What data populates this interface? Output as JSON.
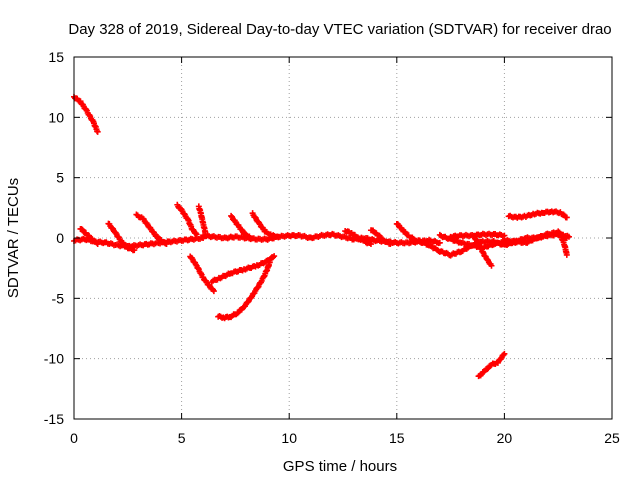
{
  "chart_data": {
    "type": "scatter",
    "title": "Day 328 of 2019, Sidereal Day-to-day VTEC variation (SDTVAR) for receiver drao",
    "xlabel": "GPS time / hours",
    "ylabel": "SDTVAR / TECUs",
    "xlim": [
      0,
      25
    ],
    "ylim": [
      -15,
      15
    ],
    "xticks": [
      0,
      5,
      10,
      15,
      20,
      25
    ],
    "yticks": [
      -15,
      -10,
      -5,
      0,
      5,
      10,
      15
    ],
    "grid": true,
    "marker": "plus",
    "color": "#ff0000",
    "traces": [
      {
        "x": [
          0.0,
          0.3,
          0.6,
          0.9,
          1.1
        ],
        "y": [
          11.7,
          11.3,
          10.5,
          9.6,
          8.8
        ]
      },
      {
        "x": [
          0.0,
          0.5,
          1.0,
          1.5,
          2.0,
          2.5,
          3.0,
          3.5,
          4.0,
          4.5,
          5.0,
          5.5,
          6.0
        ],
        "y": [
          -0.2,
          -0.1,
          -0.3,
          -0.4,
          -0.6,
          -0.7,
          -0.6,
          -0.5,
          -0.4,
          -0.3,
          -0.2,
          -0.1,
          0.0
        ]
      },
      {
        "x": [
          0.3,
          0.6,
          0.9,
          1.1
        ],
        "y": [
          0.8,
          0.3,
          -0.2,
          -0.5
        ]
      },
      {
        "x": [
          1.6,
          1.9,
          2.2,
          2.5,
          2.8
        ],
        "y": [
          1.2,
          0.5,
          -0.3,
          -0.8,
          -1.0
        ]
      },
      {
        "x": [
          2.9,
          3.2,
          3.5,
          3.8,
          4.1,
          4.3
        ],
        "y": [
          1.9,
          1.6,
          0.9,
          0.2,
          -0.3,
          -0.5
        ]
      },
      {
        "x": [
          4.8,
          5.0,
          5.3,
          5.5,
          5.7
        ],
        "y": [
          2.7,
          2.3,
          1.5,
          0.7,
          0.3
        ]
      },
      {
        "x": [
          5.8,
          5.9,
          6.0,
          6.1
        ],
        "y": [
          2.6,
          2.0,
          1.2,
          0.5
        ]
      },
      {
        "x": [
          5.4,
          5.7,
          6.0,
          6.3,
          6.5
        ],
        "y": [
          -1.5,
          -2.3,
          -3.3,
          -4.0,
          -4.4
        ]
      },
      {
        "x": [
          6.4,
          6.8,
          7.3,
          7.9,
          8.5,
          9.0,
          9.3
        ],
        "y": [
          -3.6,
          -3.3,
          -2.9,
          -2.6,
          -2.3,
          -1.9,
          -1.5
        ]
      },
      {
        "x": [
          6.7,
          7.0,
          7.3,
          7.6,
          7.9,
          8.2,
          8.5,
          8.8,
          9.0,
          9.1
        ],
        "y": [
          -6.5,
          -6.6,
          -6.5,
          -6.2,
          -5.7,
          -5.0,
          -4.2,
          -3.3,
          -2.5,
          -2.0
        ]
      },
      {
        "x": [
          7.3,
          7.6,
          7.9,
          8.2
        ],
        "y": [
          1.8,
          1.1,
          0.4,
          0.0
        ]
      },
      {
        "x": [
          8.3,
          8.6,
          8.9,
          9.2,
          9.5
        ],
        "y": [
          2.0,
          1.2,
          0.5,
          0.2,
          0.1
        ]
      },
      {
        "x": [
          6.0,
          6.5,
          7.0,
          7.5,
          8.0,
          8.5,
          9.0,
          9.5,
          10.0,
          10.5,
          11.0,
          11.5,
          12.0,
          12.5,
          13.0,
          13.5,
          14.0,
          14.5,
          15.0,
          15.5,
          16.0,
          16.5,
          17.0
        ],
        "y": [
          0.2,
          0.1,
          0.0,
          0.1,
          0.0,
          -0.1,
          -0.1,
          0.1,
          0.2,
          0.2,
          0.0,
          0.2,
          0.3,
          0.1,
          -0.1,
          0.0,
          -0.2,
          -0.3,
          -0.4,
          -0.4,
          -0.3,
          -0.2,
          -0.4
        ]
      },
      {
        "x": [
          12.6,
          12.9,
          13.2,
          13.5,
          13.8
        ],
        "y": [
          0.6,
          0.4,
          0.0,
          -0.3,
          -0.5
        ]
      },
      {
        "x": [
          13.8,
          14.1,
          14.4,
          14.7
        ],
        "y": [
          0.7,
          0.3,
          -0.2,
          -0.5
        ]
      },
      {
        "x": [
          15.0,
          15.3,
          15.6,
          15.9,
          16.2
        ],
        "y": [
          1.2,
          0.6,
          0.1,
          -0.2,
          -0.4
        ]
      },
      {
        "x": [
          16.0,
          16.5,
          17.0,
          17.5,
          18.0,
          18.5,
          19.0,
          19.5,
          20.0,
          20.5,
          21.0,
          21.5,
          22.0,
          22.5,
          23.0
        ],
        "y": [
          -0.2,
          -0.6,
          -1.1,
          -1.4,
          -1.1,
          -0.6,
          -0.3,
          -0.3,
          -0.6,
          -0.3,
          0.0,
          0.0,
          0.2,
          0.3,
          0.1
        ]
      },
      {
        "x": [
          17.0,
          17.5,
          18.0,
          18.5,
          19.0,
          19.5,
          20.0,
          20.5
        ],
        "y": [
          0.2,
          -0.1,
          -0.4,
          -0.6,
          -0.8,
          -0.5,
          -0.3,
          -0.4
        ]
      },
      {
        "x": [
          18.6,
          18.8,
          19.0,
          19.2,
          19.4
        ],
        "y": [
          0.1,
          -0.5,
          -1.2,
          -1.8,
          -2.3
        ]
      },
      {
        "x": [
          17.5,
          18.0,
          18.5,
          19.0,
          19.5,
          20.0
        ],
        "y": [
          0.1,
          0.2,
          0.2,
          0.3,
          0.3,
          0.2
        ]
      },
      {
        "x": [
          20.0,
          20.5,
          21.0,
          21.5,
          22.0,
          22.5,
          22.9
        ],
        "y": [
          -0.2,
          -0.3,
          -0.4,
          0.0,
          0.3,
          0.5,
          0.0
        ]
      },
      {
        "x": [
          22.6,
          22.8,
          22.9
        ],
        "y": [
          0.3,
          -0.6,
          -1.4
        ]
      },
      {
        "x": [
          20.2,
          20.6,
          21.0,
          21.4,
          21.8,
          22.2,
          22.6,
          22.9
        ],
        "y": [
          1.8,
          1.7,
          1.8,
          2.0,
          2.1,
          2.2,
          2.1,
          1.7
        ]
      },
      {
        "x": [
          18.8,
          19.1,
          19.4,
          19.7,
          20.0
        ],
        "y": [
          -11.5,
          -11.0,
          -10.5,
          -10.3,
          -9.6
        ]
      }
    ]
  }
}
